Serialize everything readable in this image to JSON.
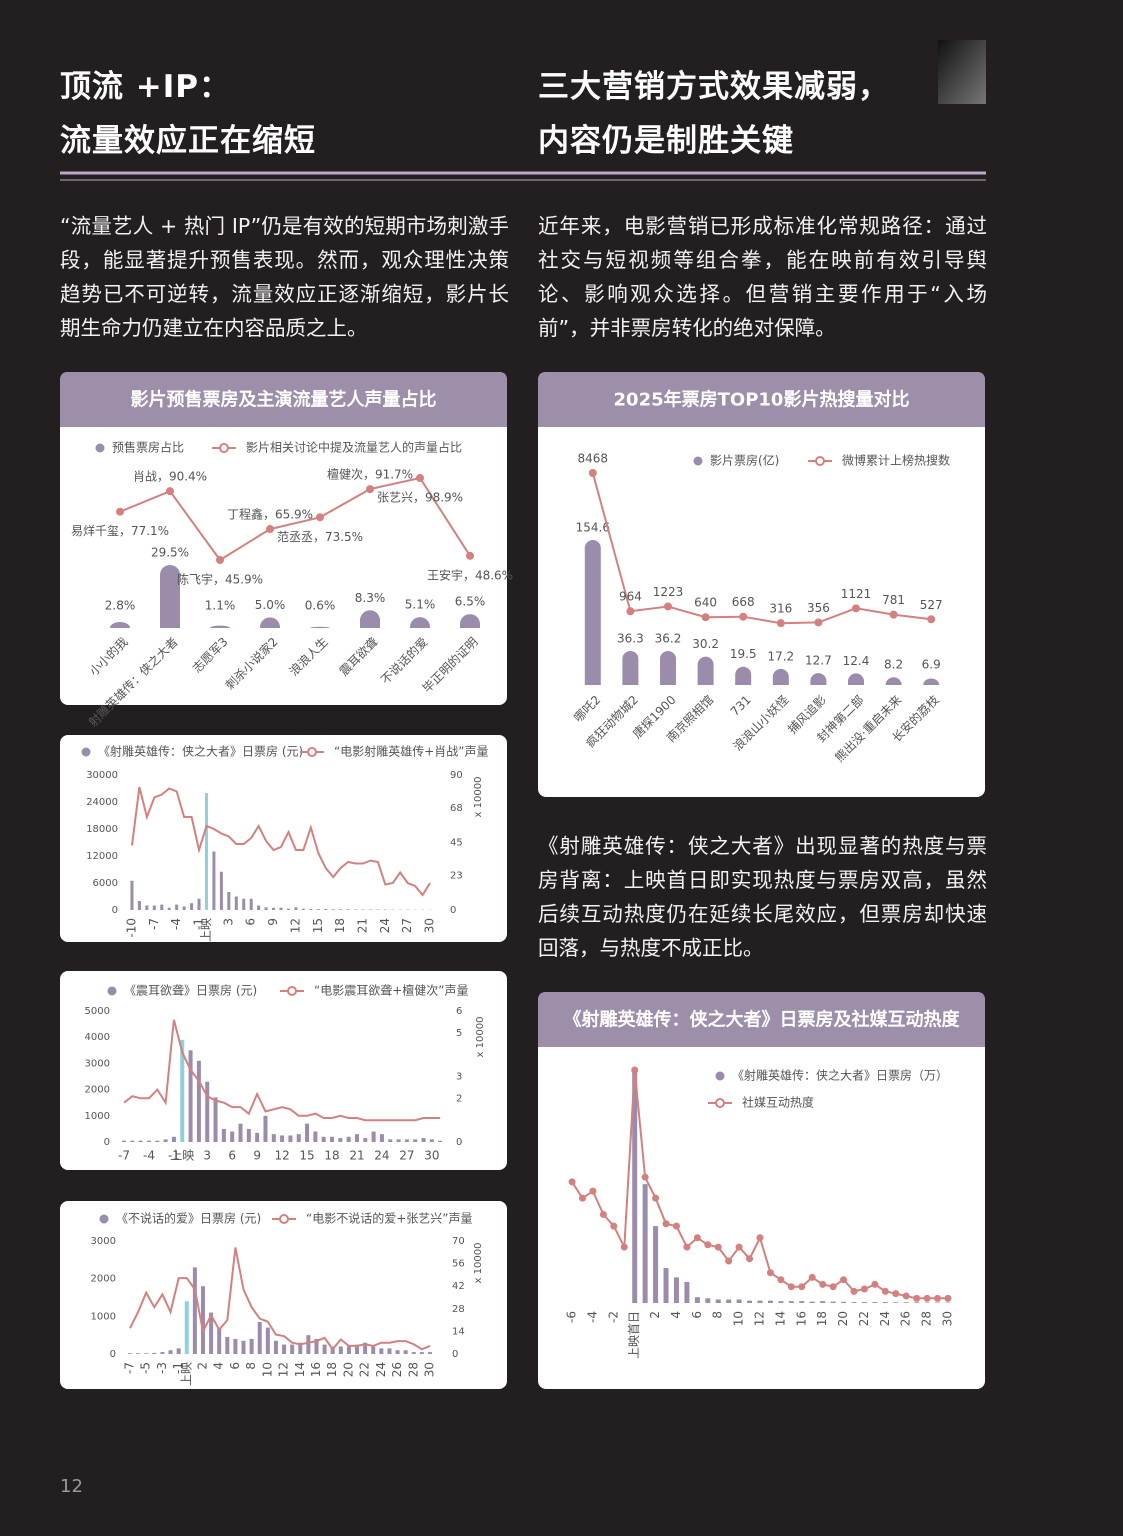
{
  "titles": {
    "left": [
      "顶流 +IP：",
      "流量效应正在缩短"
    ],
    "right": [
      "三大营销方式效果减弱，",
      "内容仍是制胜关键"
    ]
  },
  "paragraphs": {
    "left": "“流量艺人 + 热门 IP”仍是有效的短期市场刺激手段，能显著提升预售表现。然而，观众理性决策趋势已不可逆转，流量效应正逐渐缩短，影片长期生命力仍建立在内容品质之上。",
    "right": "近年来，电影营销已形成标准化常规路径：通过社交与短视频等组合拳，能在映前有效引导舆论、影响观众选择。但营销主要作用于“入场前”，并非票房转化的绝对保障。",
    "right_2": "《射雕英雄传：侠之大者》出现显著的热度与票房背离：上映首日即实现热度与票房双高，虽然后续互动热度仍在延续长尾效应，但票房却快速回落，与热度不成正比。"
  },
  "page_number": 12,
  "chart_data": [
    {
      "type": "combo",
      "title": "影片预售票房及主演流量艺人声量占比",
      "data_labels": true,
      "categories": [
        "小小的我",
        "射雕英雄传：侠之大者",
        "志愿军3",
        "刺杀小说家2",
        "浪浪人生",
        "震耳欲聋",
        "不说话的爱",
        "毕正明的证明"
      ],
      "series": [
        {
          "name": "预售票房占比",
          "type": "bar",
          "color": "#9b8cab",
          "values": [
            2.8,
            29.5,
            1.1,
            5.0,
            0.6,
            8.3,
            5.1,
            6.5
          ],
          "value_labels": [
            "2.8%",
            "29.5%",
            "1.1%",
            "5.0%",
            "0.6%",
            "8.3%",
            "5.1%",
            "6.5%"
          ]
        },
        {
          "name": "影片相关讨论中提及流量艺人的声量占比",
          "type": "line",
          "color": "#d4807f",
          "markers": true,
          "values": [
            77.1,
            90.4,
            45.9,
            65.9,
            73.5,
            91.7,
            98.9,
            48.6
          ],
          "value_labels": [
            "易烊千玺，77.1%",
            "肖战，90.4%",
            "陈飞宇，45.9%",
            "丁程鑫，65.9%",
            "范丞丞，73.5%",
            "檀健次，91.7%",
            "张艺兴，98.9%",
            "王安宇，48.6%"
          ]
        }
      ]
    },
    {
      "type": "combo",
      "title": "2025年票房TOP10影片热搜量对比",
      "data_labels": true,
      "categories": [
        "哪吒2",
        "疯狂动物城2",
        "唐探1900",
        "南京照相馆",
        "731",
        "浪浪山小妖怪",
        "捕风追影",
        "封神第二部",
        "熊出没·重启未来",
        "长安的荔枝"
      ],
      "series": [
        {
          "name": "影片票房(亿)",
          "type": "bar",
          "color": "#9b8cab",
          "values": [
            154.6,
            36.3,
            36.2,
            30.2,
            19.5,
            17.2,
            12.7,
            12.4,
            8.2,
            6.9
          ]
        },
        {
          "name": "微博累计上榜热搜数",
          "type": "line",
          "color": "#d4807f",
          "markers": true,
          "values": [
            8468,
            964,
            1223,
            640,
            668,
            316,
            356,
            1121,
            781,
            527
          ]
        }
      ]
    },
    {
      "type": "combo",
      "highlight_x": 0,
      "highlight_color": "#8fd0dc",
      "y2_label": "x 10000",
      "x": [
        -10,
        -9,
        -8,
        -7,
        -6,
        -5,
        -4,
        -3,
        -2,
        -1,
        0,
        1,
        2,
        3,
        4,
        5,
        6,
        7,
        8,
        9,
        10,
        11,
        12,
        13,
        14,
        15,
        16,
        17,
        18,
        19,
        20,
        21,
        22,
        23,
        24,
        25,
        26,
        27,
        28,
        29,
        30
      ],
      "xlim": [
        -11,
        31
      ],
      "xticks": [
        -10,
        -7,
        -4,
        -1,
        {
          "value": 0,
          "label": "上映"
        },
        3,
        6,
        9,
        12,
        15,
        18,
        21,
        24,
        27,
        30
      ],
      "ylim": [
        0,
        30000
      ],
      "yticks": [
        0,
        6000,
        12000,
        18000,
        24000,
        30000
      ],
      "y2lim": [
        0,
        90
      ],
      "y2ticks": [
        0,
        23,
        45,
        68,
        90
      ],
      "series": [
        {
          "name": "《射雕英雄传：侠之大者》日票房 (元)",
          "type": "bar",
          "color": "#9b8cab",
          "values": [
            6500,
            2000,
            1000,
            1000,
            1200,
            500,
            1200,
            800,
            1500,
            2500,
            26000,
            13000,
            8500,
            4000,
            3000,
            2500,
            2500,
            1000,
            600,
            500,
            500,
            300,
            600,
            300,
            200,
            200,
            200,
            150,
            150,
            150,
            100,
            100,
            100,
            100,
            100,
            80,
            80,
            80,
            60,
            60,
            50
          ]
        },
        {
          "name": "“电影射雕英雄传+肖战”声量",
          "type": "line",
          "axis": "y2",
          "color": "#d4807f",
          "values": [
            43,
            82,
            62,
            75,
            77,
            81,
            79,
            62,
            62,
            40,
            56,
            54,
            51,
            49,
            44,
            44,
            48,
            56,
            46,
            40,
            42,
            52,
            40,
            40,
            55,
            38,
            28,
            22,
            28,
            32,
            31,
            31,
            33,
            32,
            17,
            18,
            25,
            18,
            16,
            10,
            18
          ]
        }
      ]
    },
    {
      "type": "combo",
      "highlight_x": 0,
      "highlight_color": "#8fd0dc",
      "y2_label": "x 10000",
      "x": [
        -7,
        -6,
        -5,
        -4,
        -3,
        -2,
        -1,
        0,
        1,
        2,
        3,
        4,
        5,
        6,
        7,
        8,
        9,
        10,
        11,
        12,
        13,
        14,
        15,
        16,
        17,
        18,
        19,
        20,
        21,
        22,
        23,
        24,
        25,
        26,
        27,
        28,
        29,
        30,
        31
      ],
      "xlim": [
        -8,
        32
      ],
      "xticks": [
        -7,
        -4,
        -1,
        {
          "value": 0,
          "label": "上映"
        },
        3,
        6,
        9,
        12,
        15,
        18,
        21,
        24,
        27,
        30
      ],
      "ylim": [
        0,
        5000
      ],
      "yticks": [
        0,
        1000,
        2000,
        3000,
        4000,
        5000
      ],
      "y2lim": [
        0,
        6
      ],
      "y2ticks": [
        0,
        2,
        3,
        5,
        6
      ],
      "series": [
        {
          "name": "《震耳欲聋》日票房 (元)",
          "type": "bar",
          "color": "#9b8cab",
          "values": [
            50,
            50,
            50,
            50,
            50,
            100,
            200,
            3900,
            3500,
            3100,
            2300,
            1700,
            500,
            400,
            700,
            500,
            350,
            1000,
            300,
            250,
            250,
            300,
            700,
            400,
            200,
            200,
            150,
            200,
            300,
            150,
            400,
            300,
            100,
            100,
            100,
            100,
            150,
            100,
            50
          ]
        },
        {
          "name": "“电影震耳欲聋+檀健次”声量",
          "type": "line",
          "axis": "y2",
          "color": "#d4807f",
          "values": [
            1.8,
            2.1,
            2.0,
            2.0,
            2.4,
            1.8,
            5.6,
            4.1,
            3.3,
            2.8,
            2.1,
            1.9,
            1.8,
            1.6,
            1.6,
            1.3,
            2.2,
            1.4,
            1.5,
            1.6,
            1.5,
            1.2,
            1.2,
            1.3,
            1.1,
            1.1,
            1.2,
            1.1,
            1.1,
            1.0,
            1.0,
            1.0,
            1.0,
            1.0,
            1.0,
            1.0,
            1.1,
            1.1,
            1.1
          ]
        }
      ]
    },
    {
      "type": "combo",
      "highlight_x": 0,
      "highlight_color": "#8fd0dc",
      "y2_label": "x 10000",
      "x": [
        -7,
        -6,
        -5,
        -4,
        -3,
        -2,
        -1,
        0,
        1,
        2,
        3,
        4,
        5,
        6,
        7,
        8,
        9,
        10,
        11,
        12,
        13,
        14,
        15,
        16,
        17,
        18,
        19,
        20,
        21,
        22,
        23,
        24,
        25,
        26,
        27,
        28,
        29,
        30
      ],
      "xlim": [
        -8,
        31
      ],
      "xticks": [
        -7,
        -5,
        -3,
        -1,
        {
          "value": 0,
          "label": "上映"
        },
        2,
        4,
        6,
        8,
        10,
        12,
        14,
        16,
        18,
        20,
        22,
        24,
        26,
        28,
        30
      ],
      "ylim": [
        0,
        3000
      ],
      "yticks": [
        0,
        1000,
        2000,
        3000
      ],
      "y2lim": [
        0,
        70
      ],
      "y2ticks": [
        0,
        14,
        28,
        42,
        56,
        70
      ],
      "series": [
        {
          "name": "《不说话的爱》日票房 (元)",
          "type": "bar",
          "color": "#9b8cab",
          "values": [
            20,
            20,
            20,
            30,
            50,
            100,
            150,
            1400,
            2300,
            1800,
            1100,
            700,
            450,
            400,
            350,
            400,
            850,
            700,
            350,
            250,
            250,
            300,
            500,
            400,
            250,
            200,
            200,
            200,
            250,
            300,
            200,
            150,
            150,
            100,
            100,
            50,
            50,
            50
          ]
        },
        {
          "name": "“电影不说话的爱+张艺兴”声量",
          "type": "line",
          "axis": "y2",
          "color": "#d4807f",
          "values": [
            16,
            26,
            38,
            29,
            37,
            26,
            47,
            47,
            40,
            14,
            24,
            15,
            21,
            66,
            40,
            29,
            22,
            20,
            12,
            11,
            7,
            6,
            7,
            8,
            10,
            3,
            9,
            5,
            5,
            6,
            5,
            7,
            7,
            8,
            8,
            6,
            3,
            5
          ]
        }
      ]
    },
    {
      "type": "combo",
      "title": "《射雕英雄传：侠之大者》日票房及社媒互动热度",
      "x": [
        -6,
        -5,
        -4,
        -3,
        -2,
        -1,
        0,
        1,
        2,
        3,
        4,
        5,
        6,
        7,
        8,
        9,
        10,
        11,
        12,
        13,
        14,
        15,
        16,
        17,
        18,
        19,
        20,
        21,
        22,
        23,
        24,
        25,
        26,
        27,
        28,
        29,
        30
      ],
      "xlim": [
        -7,
        31
      ],
      "xticks": [
        -6,
        -4,
        -2,
        {
          "value": 0,
          "label": "上映首日"
        },
        2,
        4,
        6,
        8,
        10,
        12,
        14,
        16,
        18,
        20,
        22,
        24,
        26,
        28,
        30
      ],
      "series": [
        {
          "name": "《射雕英雄传：侠之大者》日票房（万）",
          "type": "bar",
          "color": "#9b8cab",
          "values": [
            null,
            null,
            null,
            null,
            null,
            null,
            100,
            51,
            33,
            15,
            11,
            9,
            2.5,
            2,
            1.5,
            1.5,
            1.5,
            1,
            1,
            1,
            0.8,
            0.8,
            0.8,
            0.6,
            0.8,
            0.6,
            0.5,
            0.4,
            0.4,
            0.4,
            0.4,
            0.3,
            0.3,
            0.3,
            0.2,
            0.2,
            0.2
          ]
        },
        {
          "name": "社媒互动热度",
          "type": "line",
          "color": "#d4807f",
          "markers": true,
          "values": [
            52,
            45,
            48,
            38,
            33,
            24,
            100,
            54,
            45,
            34,
            33,
            24,
            28,
            25,
            24,
            18,
            24,
            19,
            28,
            13,
            10,
            7,
            7,
            11,
            8,
            7,
            10,
            5,
            6,
            8,
            5,
            4,
            3,
            2,
            2,
            2,
            2
          ]
        }
      ]
    }
  ]
}
